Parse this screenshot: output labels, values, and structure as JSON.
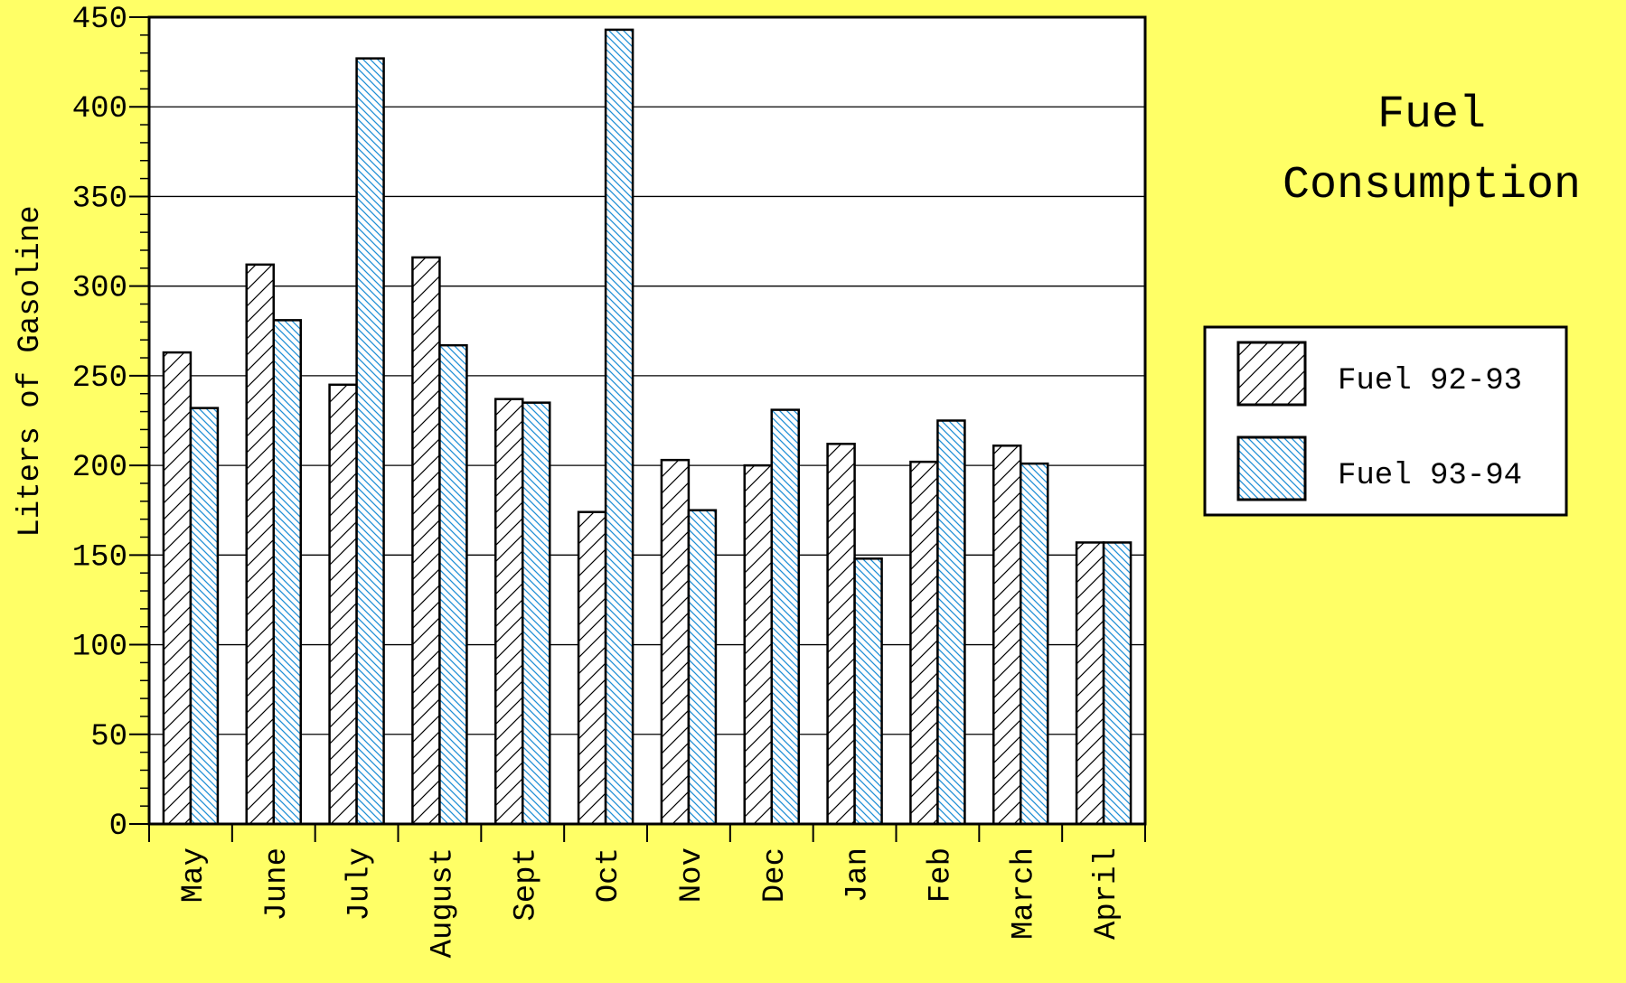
{
  "colors": {
    "background": "#ffff66",
    "plot_area": "#ffffff",
    "series1_hatch": "#000000",
    "series2_hatch": "#1f8fd6"
  },
  "chart_data": {
    "type": "bar",
    "title": [
      "Fuel",
      "Consumption"
    ],
    "ylabel": "Liters of Gasoline",
    "xlabel": "",
    "ylim": [
      0,
      450
    ],
    "yticks": [
      0,
      50,
      100,
      150,
      200,
      250,
      300,
      350,
      400,
      450
    ],
    "grid": true,
    "legend_position": "right",
    "categories": [
      "May",
      "June",
      "July",
      "August",
      "Sept",
      "Oct",
      "Nov",
      "Dec",
      "Jan",
      "Feb",
      "March",
      "April"
    ],
    "series": [
      {
        "name": "Fuel 92-93",
        "pattern": "diagonal-hatch",
        "values": [
          263,
          312,
          245,
          316,
          237,
          174,
          203,
          200,
          212,
          202,
          211,
          157
        ]
      },
      {
        "name": "Fuel 93-94",
        "pattern": "fine-diagonal-hatch-blue",
        "values": [
          232,
          281,
          427,
          267,
          235,
          443,
          175,
          231,
          148,
          225,
          201,
          157
        ]
      }
    ]
  }
}
